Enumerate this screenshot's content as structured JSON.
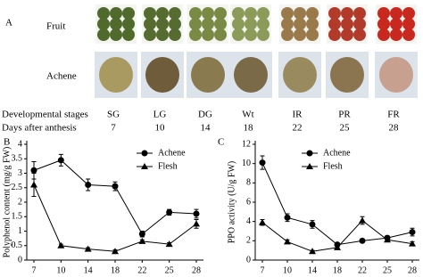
{
  "panel_a": {
    "label": "A",
    "row_labels": [
      "Fruit",
      "Achene"
    ],
    "stages_label": "Developmental stages",
    "stages": [
      "SG",
      "LG",
      "DG",
      "Wt",
      "IR",
      "PR",
      "FR"
    ],
    "days_label": "Days after anthesis",
    "days": [
      7,
      10,
      14,
      18,
      22,
      25,
      28
    ]
  },
  "chart_data": [
    {
      "type": "line",
      "panel_label": "B",
      "ylabel": "Polyphenol content (mg/g FW)",
      "categories": [
        "7",
        "10",
        "14",
        "18",
        "22",
        "25",
        "28"
      ],
      "series": [
        {
          "name": "Achene",
          "color": "#000000",
          "marker": "circle",
          "values": [
            3.1,
            3.45,
            2.6,
            2.55,
            0.9,
            1.65,
            1.6
          ],
          "errors": [
            0.3,
            0.2,
            0.2,
            0.15,
            0.1,
            0.1,
            0.15
          ]
        },
        {
          "name": "Flesh",
          "color": "#000000",
          "marker": "triangle",
          "values": [
            2.6,
            0.5,
            0.38,
            0.3,
            0.65,
            0.55,
            1.25
          ],
          "errors": [
            0.4,
            0.05,
            0.05,
            0.05,
            0.05,
            0.05,
            0.15
          ]
        }
      ],
      "ylim": [
        0,
        4
      ],
      "yticks": [
        0,
        0.5,
        1,
        1.5,
        2,
        2.5,
        3,
        3.5,
        4
      ],
      "legend": "upper right"
    },
    {
      "type": "line",
      "panel_label": "C",
      "ylabel": "PPO activity (U/g FW)",
      "categories": [
        "7",
        "10",
        "14",
        "18",
        "22",
        "25",
        "28"
      ],
      "series": [
        {
          "name": "Achene",
          "color": "#000000",
          "marker": "circle",
          "values": [
            10.1,
            4.4,
            3.7,
            1.6,
            2.0,
            2.3,
            2.9
          ],
          "errors": [
            0.7,
            0.4,
            0.4,
            0.2,
            0.2,
            0.2,
            0.4
          ]
        },
        {
          "name": "Flesh",
          "color": "#000000",
          "marker": "triangle",
          "values": [
            3.9,
            1.9,
            0.9,
            1.3,
            4.1,
            2.1,
            1.7
          ],
          "errors": [
            0.3,
            0.2,
            0.1,
            0.2,
            0.4,
            0.2,
            0.2
          ]
        }
      ],
      "ylim": [
        0,
        12
      ],
      "yticks": [
        0,
        2,
        4,
        6,
        8,
        10,
        12
      ],
      "legend": "upper center"
    }
  ]
}
